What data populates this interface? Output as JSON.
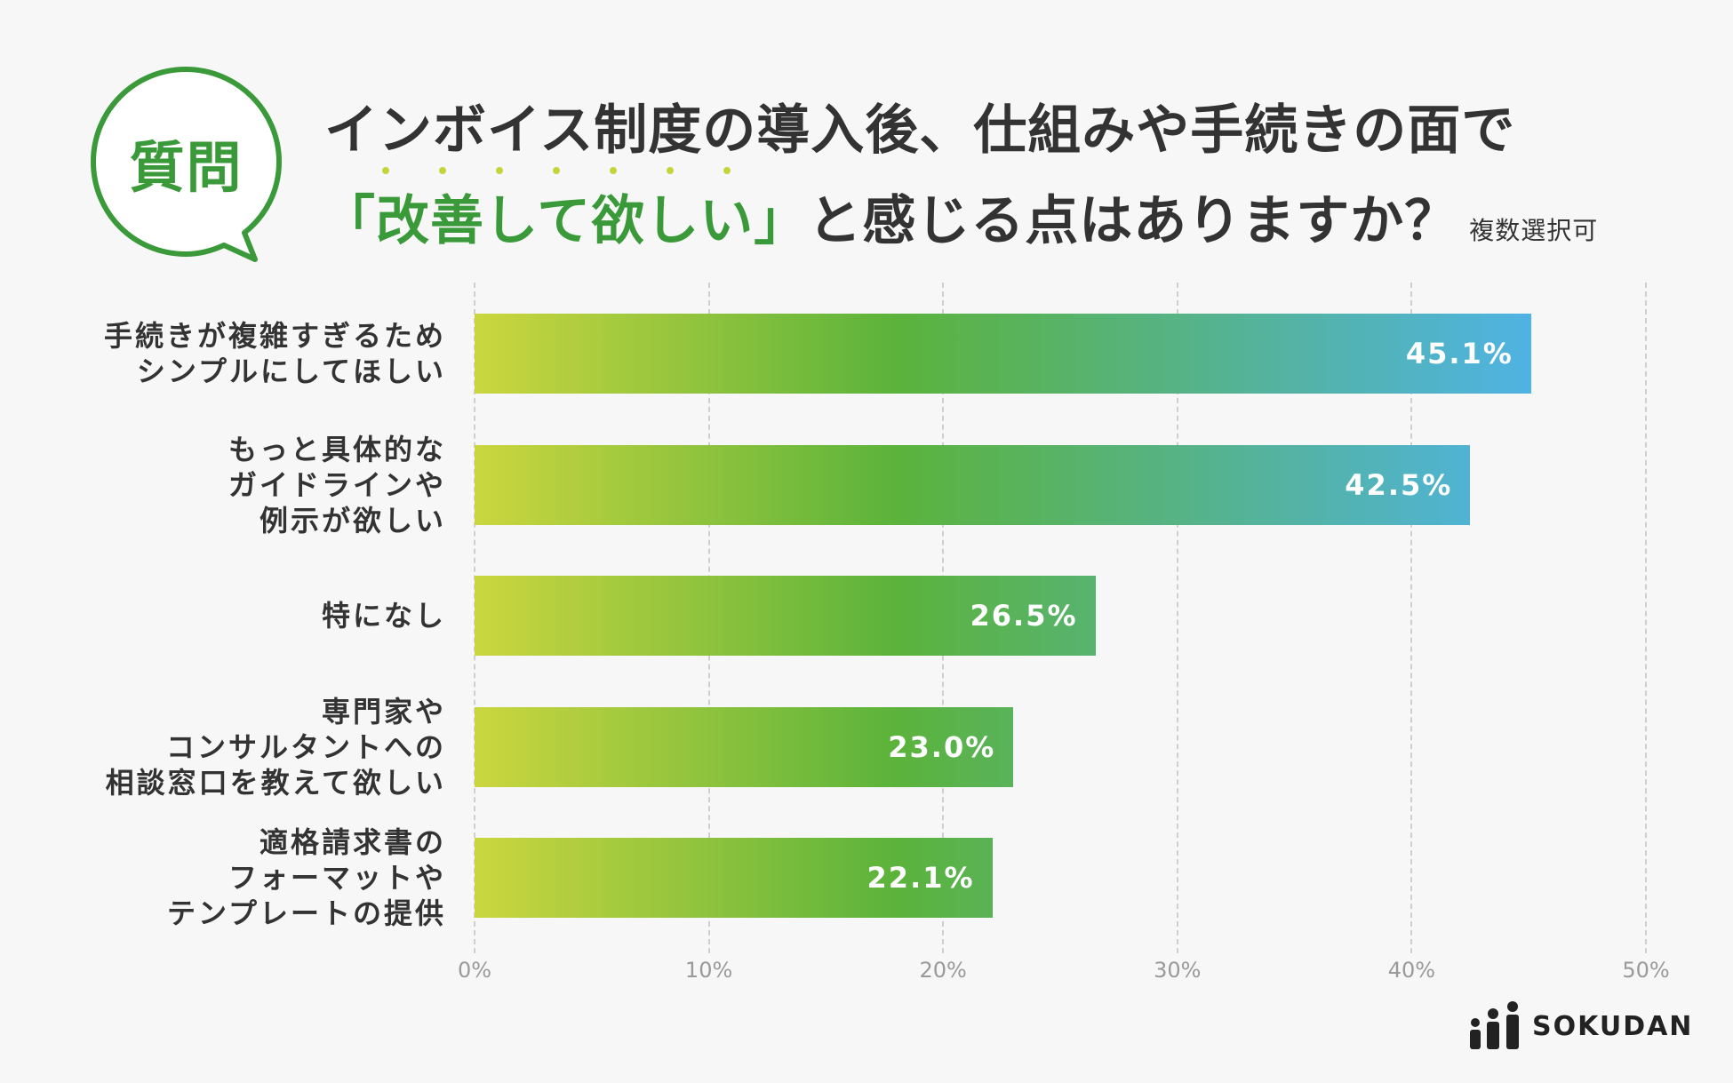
{
  "badge": {
    "label": "質問"
  },
  "title": {
    "line1": "インボイス制度の導入後、仕組みや手続きの面で",
    "line2_open": "「",
    "line2_highlight": "改善して欲しい",
    "line2_close": "」",
    "line2_rest": "と感じる点はありますか？",
    "note": "複数選択可"
  },
  "colors": {
    "accent_green": "#3a9a3a",
    "bar_start": "#cbd63f",
    "bar_mid": "#5bb33b",
    "bar_end": "#4fb3e6",
    "dot": "#c8d23a"
  },
  "chart_data": {
    "type": "bar",
    "orientation": "horizontal",
    "categories": [
      [
        "手続きが複雑すぎるため",
        "シンプルにしてほしい"
      ],
      [
        "もっと具体的な",
        "ガイドラインや",
        "例示が欲しい"
      ],
      [
        "特になし"
      ],
      [
        "専門家や",
        "コンサルタントへの",
        "相談窓口を教えて欲しい"
      ],
      [
        "適格請求書の",
        "フォーマットや",
        "テンプレートの提供"
      ]
    ],
    "values": [
      45.1,
      42.5,
      26.5,
      23.0,
      22.1
    ],
    "value_labels": [
      "45.1%",
      "42.5%",
      "26.5%",
      "23.0%",
      "22.1%"
    ],
    "xlim": [
      0,
      50
    ],
    "ticks": [
      0,
      10,
      20,
      30,
      40,
      50
    ],
    "tick_labels": [
      "0%",
      "10%",
      "20%",
      "30%",
      "40%",
      "50%"
    ],
    "grid": true,
    "xlabel": "",
    "ylabel": ""
  },
  "logo": {
    "name": "SOKUDAN"
  }
}
